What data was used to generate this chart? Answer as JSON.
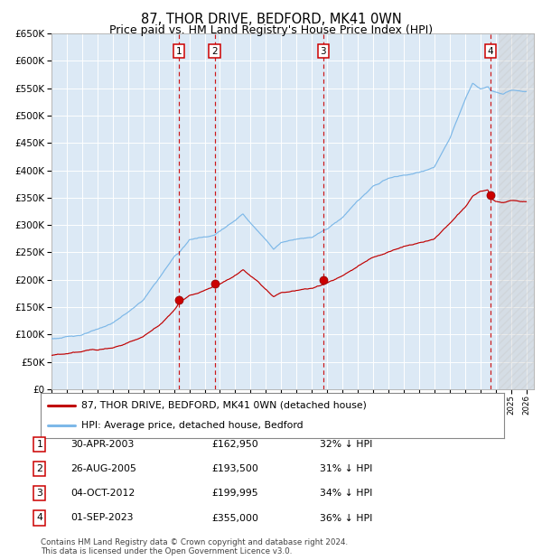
{
  "title": "87, THOR DRIVE, BEDFORD, MK41 0WN",
  "subtitle": "Price paid vs. HM Land Registry's House Price Index (HPI)",
  "ylim": [
    0,
    650000
  ],
  "yticks": [
    0,
    50000,
    100000,
    150000,
    200000,
    250000,
    300000,
    350000,
    400000,
    450000,
    500000,
    550000,
    600000,
    650000
  ],
  "xlim_start": 1995.0,
  "xlim_end": 2026.5,
  "bg_color": "#dce9f5",
  "hpi_color": "#7db8e8",
  "price_color": "#c00000",
  "vline_color": "#cc0000",
  "transactions": [
    {
      "label": "1",
      "date": 2003.33,
      "price": 162950,
      "pct": "32%",
      "date_str": "30-APR-2003",
      "price_str": "£162,950"
    },
    {
      "label": "2",
      "date": 2005.65,
      "price": 193500,
      "pct": "31%",
      "date_str": "26-AUG-2005",
      "price_str": "£193,500"
    },
    {
      "label": "3",
      "date": 2012.75,
      "price": 199995,
      "pct": "34%",
      "date_str": "04-OCT-2012",
      "price_str": "£199,995"
    },
    {
      "label": "4",
      "date": 2023.67,
      "price": 355000,
      "pct": "36%",
      "date_str": "01-SEP-2023",
      "price_str": "£355,000"
    }
  ],
  "legend1_label": "87, THOR DRIVE, BEDFORD, MK41 0WN (detached house)",
  "legend2_label": "HPI: Average price, detached house, Bedford",
  "footnote": "Contains HM Land Registry data © Crown copyright and database right 2024.\nThis data is licensed under the Open Government Licence v3.0."
}
